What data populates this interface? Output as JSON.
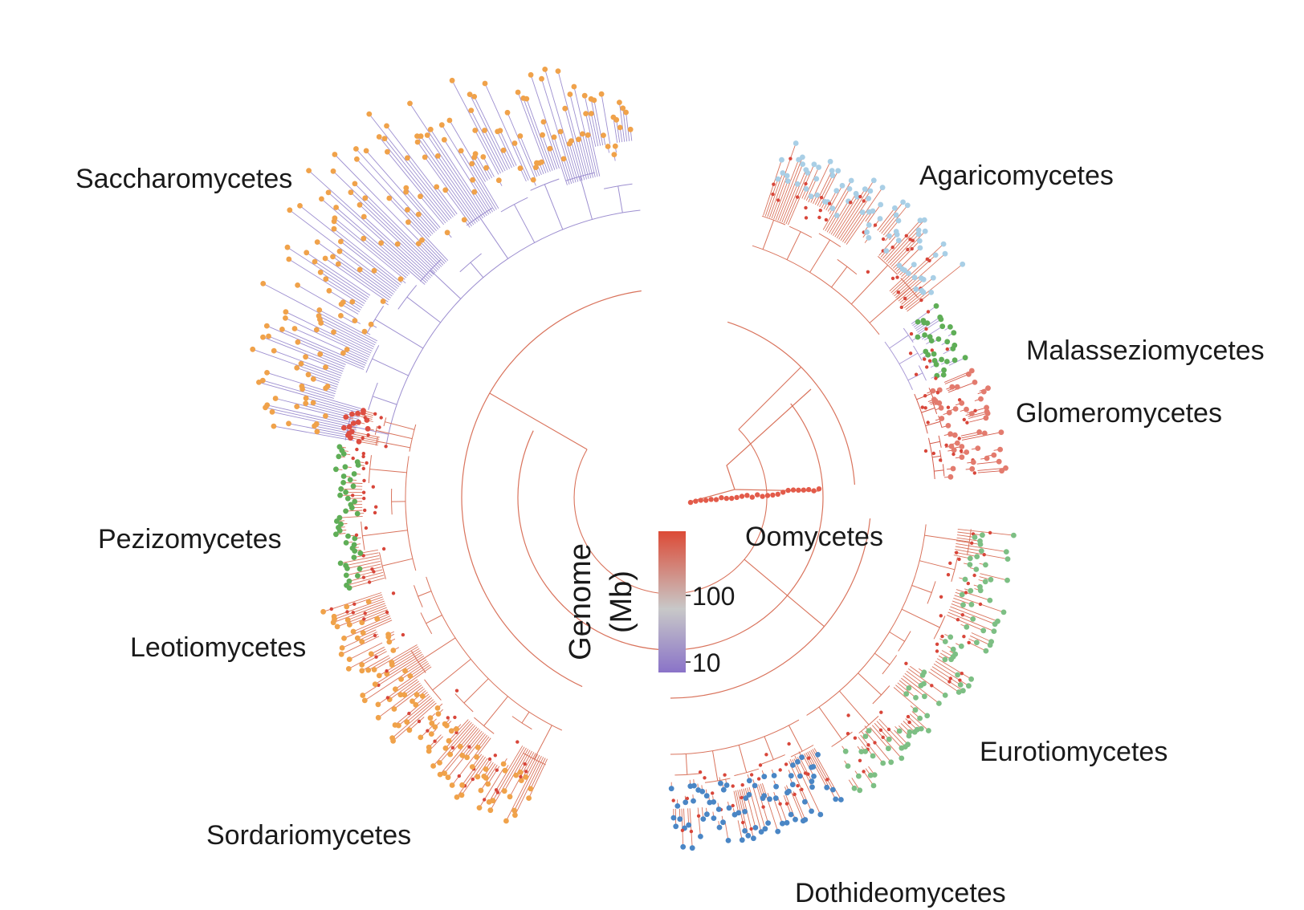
{
  "clades": [
    {
      "name": "Saccharomycetes",
      "tip_color": "#f0a24a",
      "branch_color": "#9d8fd0"
    },
    {
      "name": "Agaricomycetes",
      "tip_color": "#a9cfe6",
      "branch_color": "#d9735c"
    },
    {
      "name": "Malasseziomycetes",
      "tip_color": "#5fae57",
      "branch_color": "#a99ad6"
    },
    {
      "name": "Glomeromycetes",
      "tip_color": "#e37b6e",
      "branch_color": "#d45a4a"
    },
    {
      "name": "Oomycetes",
      "tip_color": "#e35b4a",
      "branch_color": "#d9735c"
    },
    {
      "name": "Pezizomycetes",
      "tip_color": "#de4e42",
      "branch_color": "#d9735c"
    },
    {
      "name": "Leotiomycetes",
      "tip_color": "#5fae57",
      "branch_color": "#d9735c"
    },
    {
      "name": "Sordariomycetes",
      "tip_color": "#f0a24a",
      "branch_color": "#d9735c"
    },
    {
      "name": "Dothideomycetes",
      "tip_color": "#4a86c5",
      "branch_color": "#d9735c"
    },
    {
      "name": "Eurotiomycetes",
      "tip_color": "#7dbf84",
      "branch_color": "#d9735c"
    }
  ],
  "legend": {
    "title_line1": "Genome",
    "title_line2": "(Mb)",
    "ticks": [
      {
        "label": "100",
        "value": 100
      },
      {
        "label": "10",
        "value": 10
      }
    ],
    "gradient": [
      "#8a73c8",
      "#c8c8c8",
      "#dc4a36"
    ]
  },
  "root_color": "#d9735c"
}
